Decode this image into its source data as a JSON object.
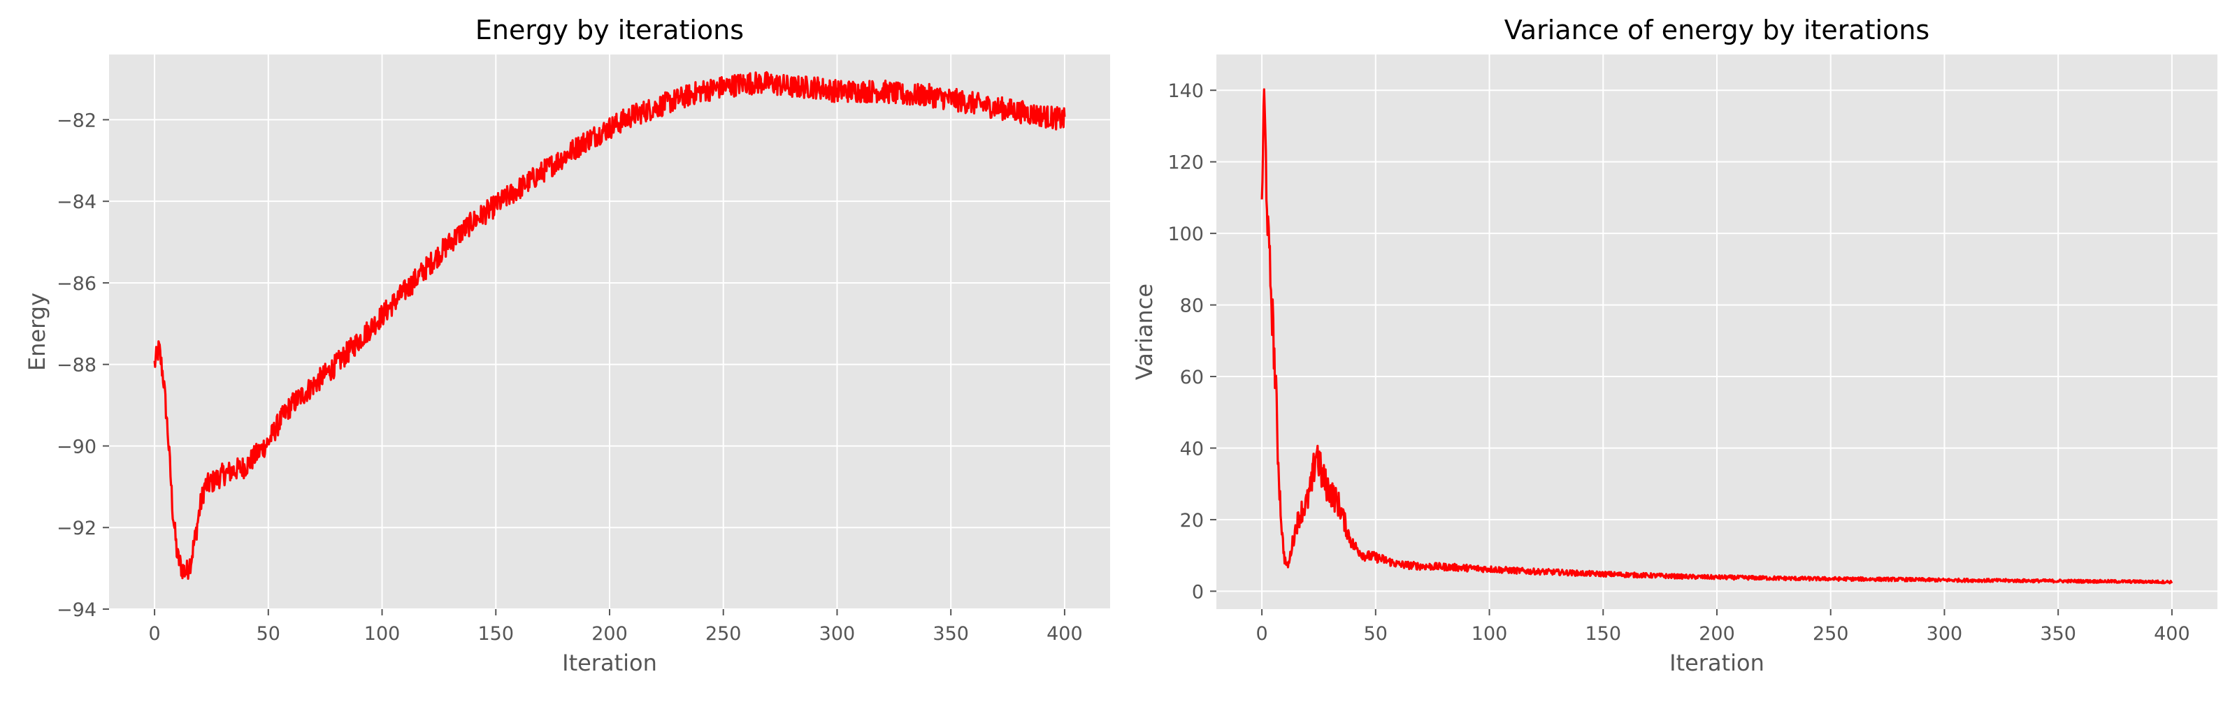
{
  "chart_data": [
    {
      "type": "line",
      "title": "Energy by iterations",
      "xlabel": "Iteration",
      "ylabel": "Energy",
      "xlim": [
        -20,
        420
      ],
      "ylim": [
        -94.0,
        -80.4
      ],
      "xticks": [
        0,
        50,
        100,
        150,
        200,
        250,
        300,
        350,
        400
      ],
      "yticks": [
        -94,
        -92,
        -90,
        -88,
        -86,
        -84,
        -82
      ],
      "ytick_labels": [
        "−94",
        "−92",
        "−90",
        "−88",
        "−86",
        "−84",
        "−82"
      ],
      "grid": true,
      "color": "#ff0000",
      "noise": 0.28,
      "series": [
        {
          "x": [
            0,
            2,
            4,
            6,
            8,
            10,
            12,
            14,
            16,
            18,
            20,
            22,
            25,
            30,
            35,
            40,
            45,
            50,
            55,
            60,
            70,
            80,
            90,
            100,
            110,
            120,
            130,
            140,
            150,
            160,
            170,
            180,
            190,
            200,
            210,
            220,
            230,
            240,
            250,
            260,
            270,
            280,
            290,
            300,
            310,
            320,
            330,
            340,
            350,
            360,
            370,
            380,
            390,
            400
          ],
          "values": [
            -88.0,
            -87.6,
            -88.4,
            -89.8,
            -91.6,
            -92.7,
            -93.0,
            -93.1,
            -92.8,
            -92.2,
            -91.5,
            -91.0,
            -90.9,
            -90.7,
            -90.6,
            -90.5,
            -90.2,
            -89.9,
            -89.4,
            -89.0,
            -88.5,
            -88.0,
            -87.4,
            -86.8,
            -86.2,
            -85.6,
            -85.0,
            -84.5,
            -84.1,
            -83.7,
            -83.3,
            -82.9,
            -82.5,
            -82.2,
            -81.9,
            -81.7,
            -81.5,
            -81.3,
            -81.2,
            -81.1,
            -81.1,
            -81.2,
            -81.2,
            -81.3,
            -81.3,
            -81.3,
            -81.4,
            -81.4,
            -81.5,
            -81.6,
            -81.7,
            -81.8,
            -81.9,
            -82.0
          ]
        }
      ]
    },
    {
      "type": "line",
      "title": "Variance of energy by iterations",
      "xlabel": "Iteration",
      "ylabel": "Variance",
      "xlim": [
        -20,
        420
      ],
      "ylim": [
        -5,
        150
      ],
      "xticks": [
        0,
        50,
        100,
        150,
        200,
        250,
        300,
        350,
        400
      ],
      "yticks": [
        0,
        20,
        40,
        60,
        80,
        100,
        120,
        140
      ],
      "ytick_labels": [
        "0",
        "20",
        "40",
        "60",
        "80",
        "100",
        "120",
        "140"
      ],
      "grid": true,
      "color": "#ff0000",
      "noise": 1.2,
      "series": [
        {
          "x": [
            0,
            1,
            2,
            3,
            4,
            5,
            6,
            7,
            8,
            9,
            10,
            11,
            12,
            13,
            15,
            17,
            20,
            22,
            24,
            26,
            28,
            30,
            32,
            34,
            36,
            38,
            40,
            45,
            50,
            55,
            60,
            70,
            80,
            90,
            100,
            110,
            120,
            130,
            140,
            150,
            160,
            170,
            180,
            190,
            200,
            210,
            220,
            240,
            260,
            280,
            300,
            320,
            340,
            360,
            380,
            400
          ],
          "values": [
            110,
            138,
            115,
            95,
            85,
            72,
            58,
            40,
            26,
            15,
            9,
            7,
            8,
            12,
            18,
            22,
            25,
            30,
            40,
            33,
            30,
            28,
            26,
            24,
            20,
            16,
            13,
            10,
            9.5,
            8.5,
            7.5,
            7,
            6.8,
            6.5,
            6.2,
            5.8,
            5.5,
            5.3,
            5.0,
            4.8,
            4.6,
            4.4,
            4.2,
            4.0,
            3.9,
            3.8,
            3.7,
            3.5,
            3.4,
            3.3,
            3.1,
            3.0,
            2.9,
            2.8,
            2.7,
            2.6
          ]
        }
      ]
    }
  ]
}
